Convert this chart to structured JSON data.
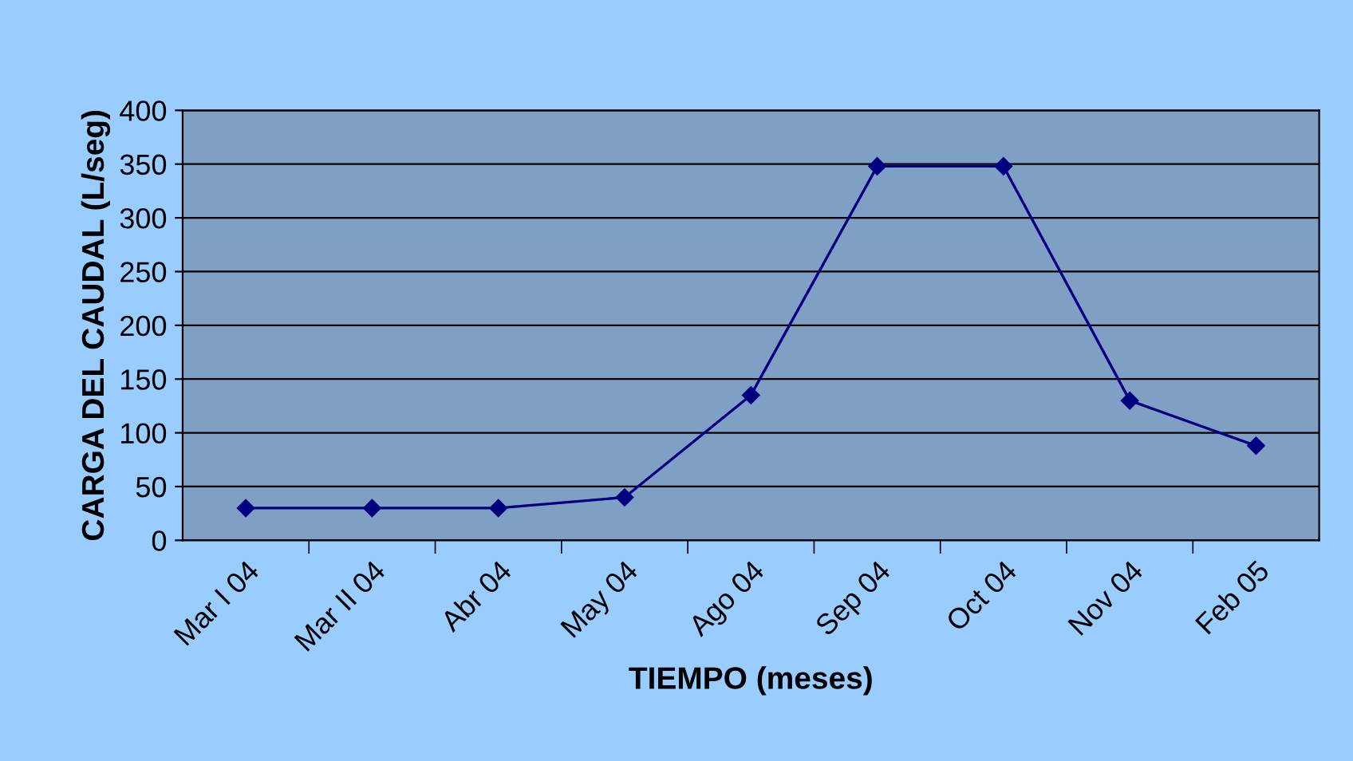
{
  "chart_data": {
    "type": "line",
    "xlabel": "TIEMPO (meses)",
    "ylabel": "CARGA DEL CAUDAL (L/seg)",
    "categories": [
      "Mar I 04",
      "Mar II 04",
      "Abr 04",
      "May 04",
      "Ago 04",
      "Sep 04",
      "Oct 04",
      "Nov 04",
      "Feb 05"
    ],
    "series": [
      {
        "color": "#000080",
        "values": [
          30,
          30,
          30,
          40,
          135,
          348,
          348,
          130,
          88
        ]
      }
    ],
    "ylim": [
      0,
      400
    ],
    "yticks": [
      0,
      50,
      100,
      150,
      200,
      250,
      300,
      350,
      400
    ],
    "grid": "y",
    "marker": "diamond",
    "line_style": "solid",
    "legend": false
  }
}
